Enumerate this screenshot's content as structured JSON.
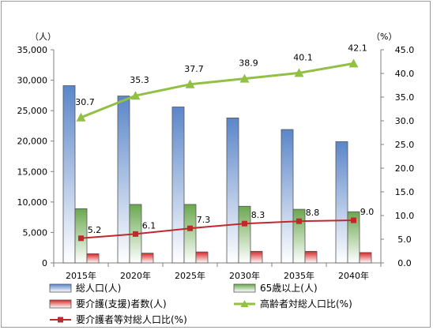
{
  "chart_data": {
    "type": "bar",
    "categories": [
      "2015年",
      "2020年",
      "2025年",
      "2030年",
      "2035年",
      "2040年"
    ],
    "y_left": {
      "unit": "（人）",
      "min": 0,
      "max": 35000,
      "step": 5000,
      "ticks": [
        "0",
        "5,000",
        "10,000",
        "15,000",
        "20,000",
        "25,000",
        "30,000",
        "35,000"
      ]
    },
    "y_right": {
      "unit": "（%）",
      "min": 0,
      "max": 45,
      "step": 5,
      "ticks": [
        "0.0",
        "5.0",
        "10.0",
        "15.0",
        "20.0",
        "25.0",
        "30.0",
        "35.0",
        "40.0",
        "45.0"
      ]
    },
    "bar_series": [
      {
        "name": "総人口(人)",
        "color": "#5b86c9",
        "values": [
          29100,
          27400,
          25600,
          23800,
          21900,
          19900
        ]
      },
      {
        "name": "65歳以上(人)",
        "color": "#6aa84f",
        "values": [
          8900,
          9600,
          9600,
          9300,
          8800,
          8400
        ]
      },
      {
        "name": "要介護(支援)者数(人)",
        "color": "#d62828",
        "values": [
          1500,
          1600,
          1800,
          1900,
          1900,
          1700
        ]
      }
    ],
    "line_series": [
      {
        "name": "高齢者対総人口比(%)",
        "color": "#92c045",
        "marker": "triangle",
        "axis": "right",
        "values": [
          30.7,
          35.3,
          37.7,
          38.9,
          40.1,
          42.1
        ],
        "labels": [
          "30.7",
          "35.3",
          "37.7",
          "38.9",
          "40.1",
          "42.1"
        ]
      },
      {
        "name": "要介護者等対総人口比(%)",
        "color": "#c0282d",
        "marker": "square",
        "axis": "right",
        "values": [
          5.2,
          6.1,
          7.3,
          8.3,
          8.8,
          9.0
        ],
        "labels": [
          "5.2",
          "6.1",
          "7.3",
          "8.3",
          "8.8",
          "9.0"
        ]
      }
    ],
    "legend": {
      "placement": "bottom",
      "items": [
        "総人口(人)",
        "65歳以上(人)",
        "要介護(支援)者数(人)",
        "高齢者対総人口比(%)",
        "要介護者等対総人口比(%)"
      ]
    },
    "grid": false
  }
}
